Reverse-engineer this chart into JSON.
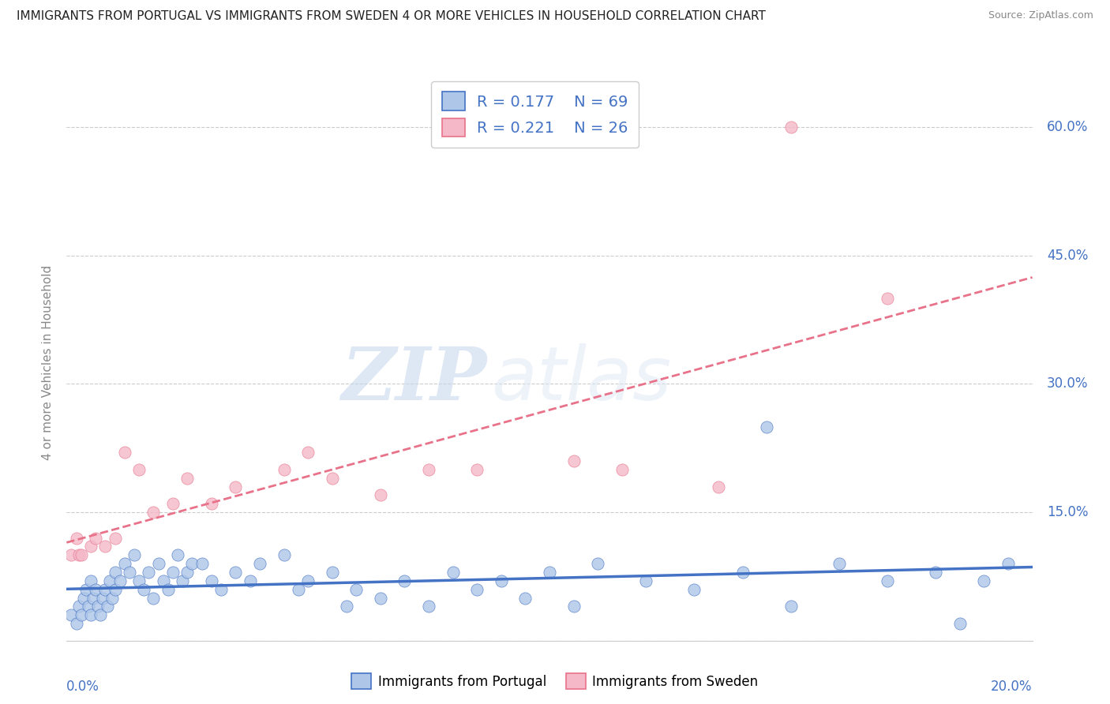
{
  "title": "IMMIGRANTS FROM PORTUGAL VS IMMIGRANTS FROM SWEDEN 4 OR MORE VEHICLES IN HOUSEHOLD CORRELATION CHART",
  "source": "Source: ZipAtlas.com",
  "ylabel_axis": "4 or more Vehicles in Household",
  "xlim": [
    0.0,
    20.0
  ],
  "ylim": [
    0.0,
    65.0
  ],
  "legend_r1": "R = 0.177",
  "legend_n1": "N = 69",
  "legend_r2": "R = 0.221",
  "legend_n2": "N = 26",
  "color_portugal": "#aec6e8",
  "color_sweden": "#f4b8c8",
  "color_line_portugal": "#4472c4",
  "color_line_sweden": "#e8728a",
  "watermark_zip": "ZIP",
  "watermark_atlas": "atlas",
  "portugal_x": [
    0.1,
    0.2,
    0.25,
    0.3,
    0.35,
    0.4,
    0.45,
    0.5,
    0.5,
    0.55,
    0.6,
    0.65,
    0.7,
    0.75,
    0.8,
    0.85,
    0.9,
    0.95,
    1.0,
    1.0,
    1.1,
    1.2,
    1.3,
    1.4,
    1.5,
    1.6,
    1.7,
    1.8,
    1.9,
    2.0,
    2.1,
    2.2,
    2.3,
    2.4,
    2.5,
    2.6,
    2.8,
    3.0,
    3.2,
    3.5,
    3.8,
    4.0,
    4.5,
    4.8,
    5.0,
    5.5,
    5.8,
    6.0,
    6.5,
    7.0,
    7.5,
    8.0,
    8.5,
    9.0,
    9.5,
    10.0,
    10.5,
    11.0,
    12.0,
    13.0,
    14.0,
    14.5,
    15.0,
    16.0,
    17.0,
    18.0,
    18.5,
    19.0,
    19.5
  ],
  "portugal_y": [
    3.0,
    2.0,
    4.0,
    3.0,
    5.0,
    6.0,
    4.0,
    3.0,
    7.0,
    5.0,
    6.0,
    4.0,
    3.0,
    5.0,
    6.0,
    4.0,
    7.0,
    5.0,
    8.0,
    6.0,
    7.0,
    9.0,
    8.0,
    10.0,
    7.0,
    6.0,
    8.0,
    5.0,
    9.0,
    7.0,
    6.0,
    8.0,
    10.0,
    7.0,
    8.0,
    9.0,
    9.0,
    7.0,
    6.0,
    8.0,
    7.0,
    9.0,
    10.0,
    6.0,
    7.0,
    8.0,
    4.0,
    6.0,
    5.0,
    7.0,
    4.0,
    8.0,
    6.0,
    7.0,
    5.0,
    8.0,
    4.0,
    9.0,
    7.0,
    6.0,
    8.0,
    25.0,
    4.0,
    9.0,
    7.0,
    8.0,
    2.0,
    7.0,
    9.0
  ],
  "sweden_x": [
    0.1,
    0.2,
    0.25,
    0.3,
    0.5,
    0.6,
    0.8,
    1.0,
    1.2,
    1.5,
    1.8,
    2.2,
    2.5,
    3.0,
    3.5,
    4.5,
    5.0,
    5.5,
    6.5,
    7.5,
    8.5,
    10.5,
    11.5,
    13.5,
    15.0,
    17.0
  ],
  "sweden_y": [
    10.0,
    12.0,
    10.0,
    10.0,
    11.0,
    12.0,
    11.0,
    12.0,
    22.0,
    20.0,
    15.0,
    16.0,
    19.0,
    16.0,
    18.0,
    20.0,
    22.0,
    19.0,
    17.0,
    20.0,
    20.0,
    21.0,
    20.0,
    18.0,
    60.0,
    40.0
  ],
  "yticks": [
    0,
    15,
    30,
    45,
    60
  ],
  "xticks": [
    0,
    5,
    10,
    15,
    20
  ]
}
